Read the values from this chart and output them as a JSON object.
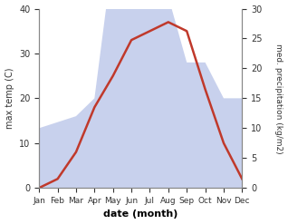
{
  "months": [
    "Jan",
    "Feb",
    "Mar",
    "Apr",
    "May",
    "Jun",
    "Jul",
    "Aug",
    "Sep",
    "Oct",
    "Nov",
    "Dec"
  ],
  "temperature": [
    0,
    2,
    8,
    18,
    25,
    33,
    35,
    37,
    35,
    22,
    10,
    2
  ],
  "precipitation": [
    10,
    11,
    12,
    15,
    39,
    35,
    32,
    32,
    21,
    21,
    15,
    15
  ],
  "temp_color": "#c0392b",
  "precip_fill_color": "#bfc9ea",
  "precip_fill_alpha": 0.85,
  "temp_ylim": [
    0,
    40
  ],
  "precip_ylim": [
    0,
    30
  ],
  "left_yticks": [
    0,
    10,
    20,
    30,
    40
  ],
  "right_yticks": [
    0,
    5,
    10,
    15,
    20,
    25,
    30
  ],
  "xlabel": "date (month)",
  "ylabel_left": "max temp (C)",
  "ylabel_right": "med. precipitation (kg/m2)",
  "figsize": [
    3.18,
    2.47
  ],
  "dpi": 100,
  "temp_linewidth": 1.8,
  "spine_color": "#888888"
}
